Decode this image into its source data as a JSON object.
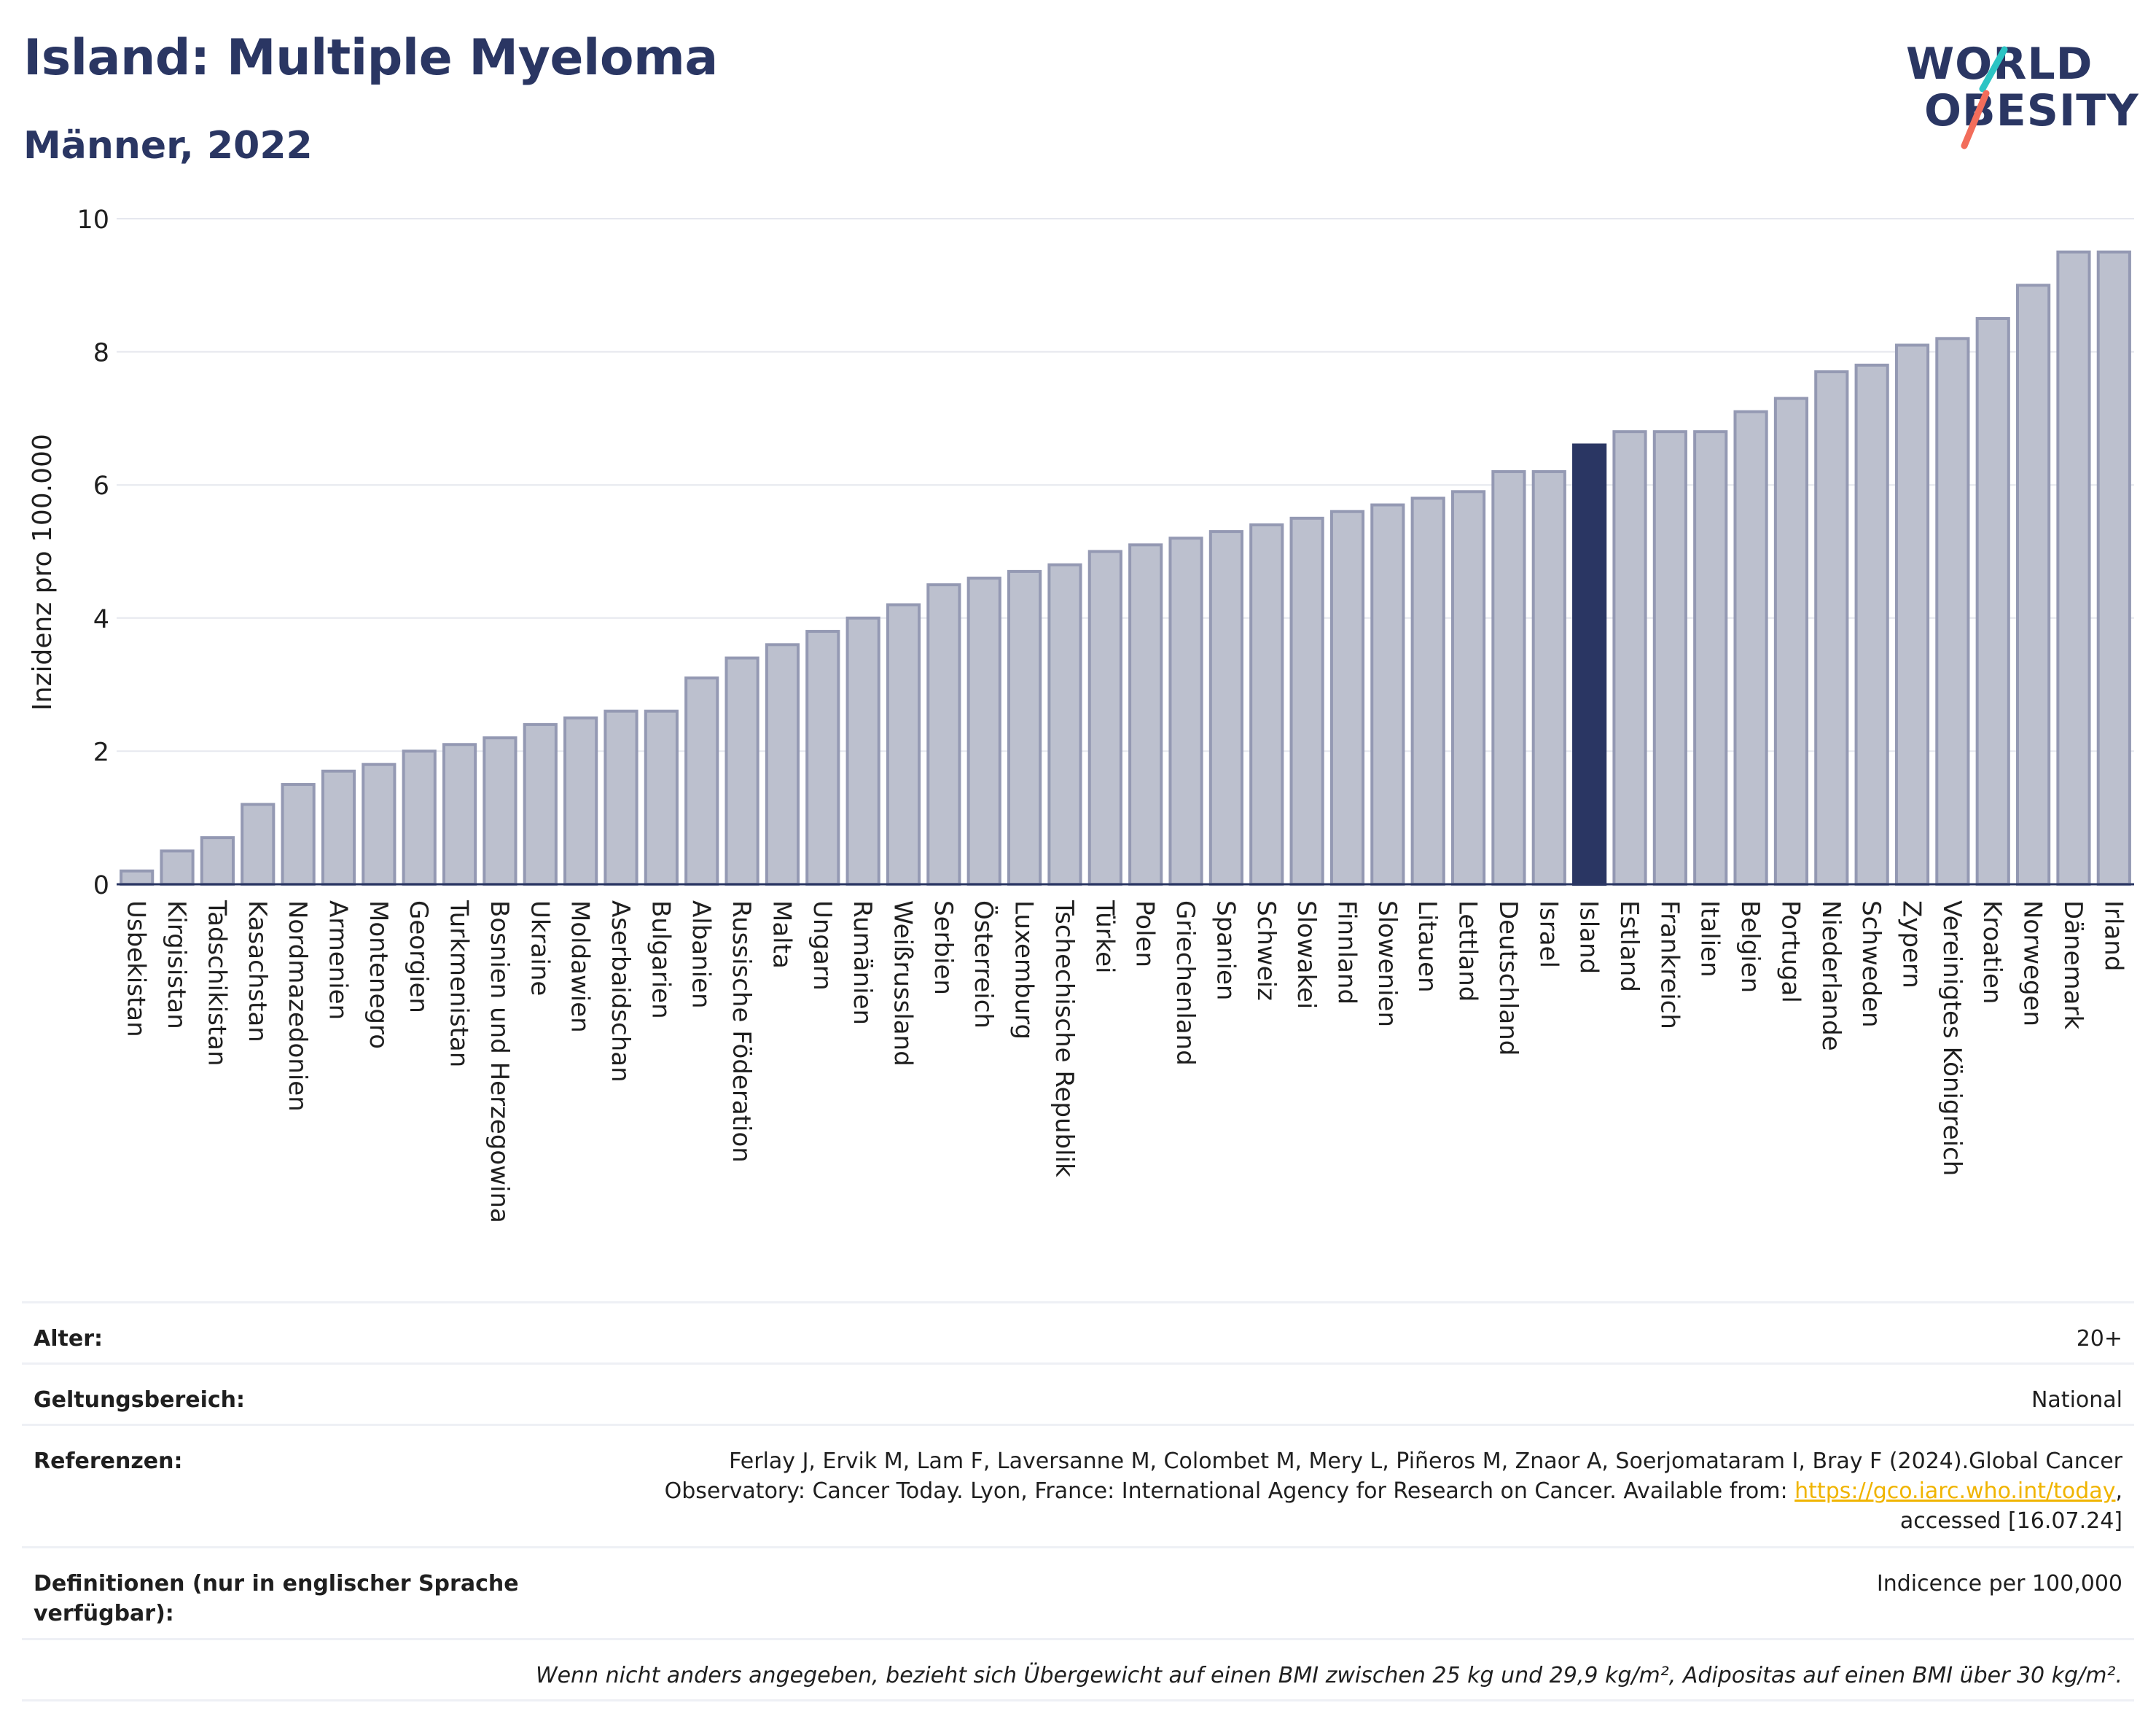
{
  "header": {
    "title": "Island: Multiple Myeloma",
    "subtitle": "Männer, 2022"
  },
  "logo": {
    "line1": "WORLD",
    "line2": "OBESITY",
    "accent_teal": "#2cc4c4",
    "accent_coral": "#f26d5b"
  },
  "colors": {
    "bar_default": "#bcc0ce",
    "bar_default_stroke": "#9499b3",
    "bar_highlight": "#2a3663",
    "title": "#2a3663",
    "grid": "#e5e7ee",
    "axis": "#2a3663"
  },
  "chart_data": {
    "type": "bar",
    "ylabel": "Inzidenz pro 100.000",
    "ylim": [
      0,
      10
    ],
    "yticks": [
      0,
      2,
      4,
      6,
      8,
      10
    ],
    "grid": true,
    "highlight": "Island",
    "categories": [
      "Usbekistan",
      "Kirgisistan",
      "Tadschikistan",
      "Kasachstan",
      "Nordmazedonien",
      "Armenien",
      "Montenegro",
      "Georgien",
      "Turkmenistan",
      "Bosnien und Herzegowina",
      "Ukraine",
      "Moldawien",
      "Aserbaidschan",
      "Bulgarien",
      "Albanien",
      "Russische Föderation",
      "Malta",
      "Ungarn",
      "Rumänien",
      "Weißrussland",
      "Serbien",
      "Österreich",
      "Luxemburg",
      "Tschechische Republik",
      "Türkei",
      "Polen",
      "Griechenland",
      "Spanien",
      "Schweiz",
      "Slowakei",
      "Finnland",
      "Slowenien",
      "Litauen",
      "Lettland",
      "Deutschland",
      "Israel",
      "Island",
      "Estland",
      "Frankreich",
      "Italien",
      "Belgien",
      "Portugal",
      "Niederlande",
      "Schweden",
      "Zypern",
      "Vereinigtes Königreich",
      "Kroatien",
      "Norwegen",
      "Dänemark",
      "Irland"
    ],
    "values": [
      0.2,
      0.5,
      0.7,
      1.2,
      1.5,
      1.7,
      1.8,
      2.0,
      2.1,
      2.2,
      2.4,
      2.5,
      2.6,
      2.6,
      3.1,
      3.4,
      3.6,
      3.8,
      4.0,
      4.2,
      4.5,
      4.6,
      4.7,
      4.8,
      5.0,
      5.1,
      5.2,
      5.3,
      5.4,
      5.5,
      5.6,
      5.7,
      5.8,
      5.9,
      6.2,
      6.2,
      6.6,
      6.8,
      6.8,
      6.8,
      7.1,
      7.3,
      7.7,
      7.8,
      8.1,
      8.2,
      8.5,
      9.0,
      9.5,
      9.5
    ]
  },
  "meta": {
    "age_label": "Alter:",
    "age_value": "20+",
    "scope_label": "Geltungsbereich:",
    "scope_value": "National",
    "refs_label": "Referenzen:",
    "refs_line1": "Ferlay J, Ervik M, Lam F, Laversanne M, Colombet M, Mery L, Piñeros M, Znaor A, Soerjomataram I, Bray F (2024).Global Cancer",
    "refs_line2": "Observatory: Cancer Today. Lyon, France: International Agency for Research on Cancer. Available from: ",
    "refs_link": "https://gco.iarc.who.int/today",
    "refs_line2_end": ",",
    "refs_line3": "accessed [16.07.24]",
    "defs_label": "Definitionen (nur in englischer Sprache verfügbar):",
    "defs_value": "Indicence per 100,000",
    "note": "Wenn nicht anders angegeben, bezieht sich Übergewicht auf einen BMI zwischen 25 kg und 29,9 kg/m², Adipositas auf einen BMI über 30 kg/m²."
  }
}
